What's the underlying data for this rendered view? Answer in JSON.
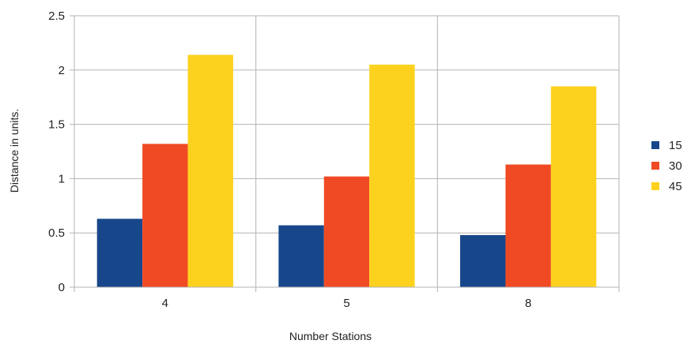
{
  "chart_data": {
    "type": "bar",
    "title": "",
    "xlabel": "Number Stations",
    "ylabel": "Distance in units.",
    "categories": [
      "4",
      "5",
      "8"
    ],
    "ylim": [
      0,
      2.5
    ],
    "yticks": [
      "0",
      "0.5",
      "1",
      "1.5",
      "2",
      "2.5"
    ],
    "grid": true,
    "legend_position": "right",
    "series": [
      {
        "name": "15",
        "color": "#17478a",
        "values": [
          0.63,
          0.57,
          0.48
        ]
      },
      {
        "name": "30",
        "color": "#f04a24",
        "values": [
          1.32,
          1.02,
          1.13
        ]
      },
      {
        "name": "45",
        "color": "#fdd21e",
        "values": [
          2.14,
          2.05,
          1.85
        ]
      }
    ]
  }
}
